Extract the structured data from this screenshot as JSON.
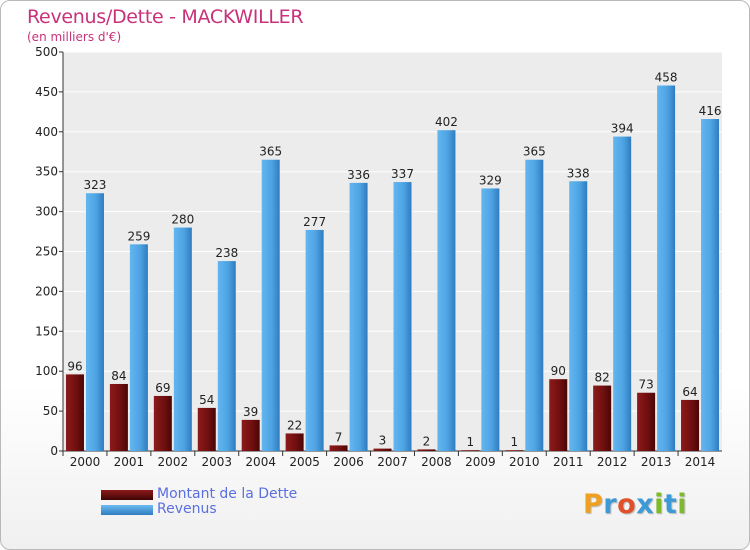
{
  "chart_data": {
    "type": "bar",
    "title": "Revenus/Dette - MACKWILLER",
    "subtitle": "(en milliers d'€)",
    "categories": [
      "2000",
      "2001",
      "2002",
      "2003",
      "2004",
      "2005",
      "2006",
      "2007",
      "2008",
      "2009",
      "2010",
      "2011",
      "2012",
      "2013",
      "2014"
    ],
    "series": [
      {
        "name": "Montant de la Dette",
        "color": "#7a1010",
        "values": [
          96,
          84,
          69,
          54,
          39,
          22,
          7,
          3,
          2,
          1,
          1,
          90,
          82,
          73,
          64
        ]
      },
      {
        "name": "Revenus",
        "color": "#4ea4e3",
        "values": [
          323,
          259,
          280,
          238,
          365,
          277,
          336,
          337,
          402,
          329,
          365,
          338,
          394,
          458,
          416
        ]
      }
    ],
    "ylim": [
      0,
      500
    ],
    "yticks": [
      0,
      50,
      100,
      150,
      200,
      250,
      300,
      350,
      400,
      450,
      500
    ],
    "grid": true,
    "legend": "bottom-left"
  },
  "logo": {
    "letters": [
      "P",
      "r",
      "o",
      "x",
      "i",
      "t",
      "i"
    ],
    "colors": [
      "#f0a020",
      "#3c9ad8",
      "#e0502a",
      "#3c9ad8",
      "#7fba2a",
      "#3c9ad8",
      "#7fba2a"
    ]
  }
}
